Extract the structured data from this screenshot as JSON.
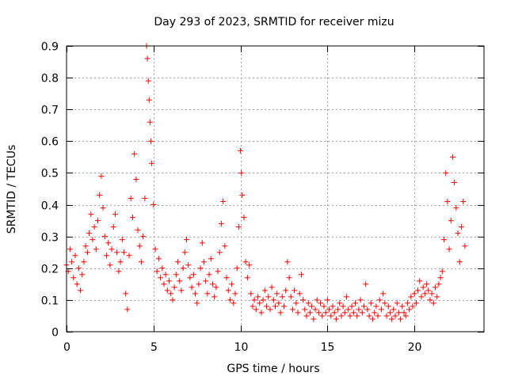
{
  "chart_data": {
    "type": "scatter",
    "title": "Day 293 of 2023, SRMTID for receiver mizu",
    "xlabel": "GPS time / hours",
    "ylabel": "SRMTID / TECUs",
    "xlim": [
      0,
      24
    ],
    "ylim": [
      0,
      0.9
    ],
    "xticks": [
      0,
      5,
      10,
      15,
      20
    ],
    "yticks": [
      0,
      0.1,
      0.2,
      0.3,
      0.4,
      0.5,
      0.6,
      0.7,
      0.8,
      0.9
    ],
    "grid": true,
    "marker": "+",
    "marker_color": "#ff0000",
    "series": [
      {
        "name": "SRMTID",
        "points": [
          [
            0.0,
            0.21
          ],
          [
            0.1,
            0.19
          ],
          [
            0.2,
            0.26
          ],
          [
            0.3,
            0.22
          ],
          [
            0.4,
            0.17
          ],
          [
            0.5,
            0.24
          ],
          [
            0.6,
            0.15
          ],
          [
            0.7,
            0.2
          ],
          [
            0.8,
            0.13
          ],
          [
            0.9,
            0.18
          ],
          [
            1.0,
            0.22
          ],
          [
            1.1,
            0.27
          ],
          [
            1.2,
            0.25
          ],
          [
            1.3,
            0.31
          ],
          [
            1.4,
            0.37
          ],
          [
            1.5,
            0.29
          ],
          [
            1.6,
            0.33
          ],
          [
            1.7,
            0.26
          ],
          [
            1.8,
            0.35
          ],
          [
            1.9,
            0.43
          ],
          [
            2.0,
            0.49
          ],
          [
            2.1,
            0.39
          ],
          [
            2.2,
            0.3
          ],
          [
            2.3,
            0.24
          ],
          [
            2.4,
            0.28
          ],
          [
            2.5,
            0.21
          ],
          [
            2.6,
            0.26
          ],
          [
            2.7,
            0.33
          ],
          [
            2.8,
            0.37
          ],
          [
            2.9,
            0.25
          ],
          [
            3.0,
            0.19
          ],
          [
            3.1,
            0.22
          ],
          [
            3.2,
            0.29
          ],
          [
            3.3,
            0.25
          ],
          [
            3.4,
            0.12
          ],
          [
            3.5,
            0.07
          ],
          [
            3.6,
            0.24
          ],
          [
            3.7,
            0.42
          ],
          [
            3.8,
            0.36
          ],
          [
            3.9,
            0.56
          ],
          [
            4.0,
            0.48
          ],
          [
            4.1,
            0.32
          ],
          [
            4.2,
            0.27
          ],
          [
            4.3,
            0.22
          ],
          [
            4.4,
            0.3
          ],
          [
            4.5,
            0.42
          ],
          [
            4.6,
            0.9
          ],
          [
            4.65,
            0.86
          ],
          [
            4.7,
            0.79
          ],
          [
            4.75,
            0.73
          ],
          [
            4.8,
            0.66
          ],
          [
            4.85,
            0.6
          ],
          [
            4.9,
            0.53
          ],
          [
            5.0,
            0.4
          ],
          [
            5.1,
            0.26
          ],
          [
            5.2,
            0.19
          ],
          [
            5.3,
            0.23
          ],
          [
            5.4,
            0.17
          ],
          [
            5.5,
            0.2
          ],
          [
            5.6,
            0.15
          ],
          [
            5.7,
            0.18
          ],
          [
            5.8,
            0.13
          ],
          [
            5.9,
            0.16
          ],
          [
            6.0,
            0.12
          ],
          [
            6.1,
            0.1
          ],
          [
            6.2,
            0.14
          ],
          [
            6.3,
            0.18
          ],
          [
            6.4,
            0.22
          ],
          [
            6.5,
            0.16
          ],
          [
            6.6,
            0.13
          ],
          [
            6.7,
            0.2
          ],
          [
            6.8,
            0.25
          ],
          [
            6.9,
            0.29
          ],
          [
            7.0,
            0.21
          ],
          [
            7.1,
            0.17
          ],
          [
            7.2,
            0.14
          ],
          [
            7.3,
            0.18
          ],
          [
            7.4,
            0.12
          ],
          [
            7.5,
            0.09
          ],
          [
            7.6,
            0.15
          ],
          [
            7.7,
            0.2
          ],
          [
            7.8,
            0.28
          ],
          [
            7.9,
            0.22
          ],
          [
            8.0,
            0.16
          ],
          [
            8.1,
            0.12
          ],
          [
            8.2,
            0.18
          ],
          [
            8.3,
            0.23
          ],
          [
            8.4,
            0.15
          ],
          [
            8.5,
            0.11
          ],
          [
            8.6,
            0.14
          ],
          [
            8.7,
            0.19
          ],
          [
            8.8,
            0.25
          ],
          [
            8.9,
            0.34
          ],
          [
            9.0,
            0.41
          ],
          [
            9.1,
            0.27
          ],
          [
            9.2,
            0.17
          ],
          [
            9.3,
            0.13
          ],
          [
            9.4,
            0.1
          ],
          [
            9.5,
            0.15
          ],
          [
            9.6,
            0.09
          ],
          [
            9.7,
            0.12
          ],
          [
            9.8,
            0.2
          ],
          [
            9.9,
            0.33
          ],
          [
            10.0,
            0.57
          ],
          [
            10.05,
            0.5
          ],
          [
            10.1,
            0.43
          ],
          [
            10.2,
            0.36
          ],
          [
            10.3,
            0.22
          ],
          [
            10.4,
            0.17
          ],
          [
            10.5,
            0.21
          ],
          [
            10.6,
            0.12
          ],
          [
            10.7,
            0.08
          ],
          [
            10.8,
            0.1
          ],
          [
            10.9,
            0.07
          ],
          [
            11.0,
            0.11
          ],
          [
            11.1,
            0.09
          ],
          [
            11.2,
            0.06
          ],
          [
            11.3,
            0.1
          ],
          [
            11.4,
            0.13
          ],
          [
            11.5,
            0.08
          ],
          [
            11.6,
            0.11
          ],
          [
            11.7,
            0.07
          ],
          [
            11.8,
            0.14
          ],
          [
            11.9,
            0.1
          ],
          [
            12.0,
            0.08
          ],
          [
            12.1,
            0.12
          ],
          [
            12.2,
            0.09
          ],
          [
            12.3,
            0.06
          ],
          [
            12.4,
            0.11
          ],
          [
            12.5,
            0.08
          ],
          [
            12.6,
            0.13
          ],
          [
            12.7,
            0.22
          ],
          [
            12.8,
            0.17
          ],
          [
            12.9,
            0.11
          ],
          [
            13.0,
            0.07
          ],
          [
            13.1,
            0.13
          ],
          [
            13.2,
            0.09
          ],
          [
            13.3,
            0.06
          ],
          [
            13.4,
            0.12
          ],
          [
            13.5,
            0.18
          ],
          [
            13.6,
            0.1
          ],
          [
            13.7,
            0.07
          ],
          [
            13.8,
            0.05
          ],
          [
            13.9,
            0.09
          ],
          [
            14.0,
            0.06
          ],
          [
            14.1,
            0.08
          ],
          [
            14.2,
            0.04
          ],
          [
            14.3,
            0.07
          ],
          [
            14.4,
            0.1
          ],
          [
            14.5,
            0.06
          ],
          [
            14.6,
            0.09
          ],
          [
            14.7,
            0.05
          ],
          [
            14.8,
            0.08
          ],
          [
            14.9,
            0.06
          ],
          [
            15.0,
            0.1
          ],
          [
            15.1,
            0.07
          ],
          [
            15.2,
            0.05
          ],
          [
            15.3,
            0.08
          ],
          [
            15.4,
            0.06
          ],
          [
            15.5,
            0.04
          ],
          [
            15.6,
            0.07
          ],
          [
            15.7,
            0.09
          ],
          [
            15.8,
            0.05
          ],
          [
            15.9,
            0.08
          ],
          [
            16.0,
            0.06
          ],
          [
            16.1,
            0.11
          ],
          [
            16.2,
            0.07
          ],
          [
            16.3,
            0.05
          ],
          [
            16.4,
            0.08
          ],
          [
            16.5,
            0.06
          ],
          [
            16.6,
            0.09
          ],
          [
            16.7,
            0.05
          ],
          [
            16.8,
            0.07
          ],
          [
            16.9,
            0.1
          ],
          [
            17.0,
            0.06
          ],
          [
            17.1,
            0.08
          ],
          [
            17.2,
            0.15
          ],
          [
            17.3,
            0.07
          ],
          [
            17.4,
            0.05
          ],
          [
            17.5,
            0.09
          ],
          [
            17.6,
            0.04
          ],
          [
            17.7,
            0.06
          ],
          [
            17.8,
            0.08
          ],
          [
            17.9,
            0.05
          ],
          [
            18.0,
            0.1
          ],
          [
            18.1,
            0.07
          ],
          [
            18.2,
            0.12
          ],
          [
            18.3,
            0.09
          ],
          [
            18.4,
            0.05
          ],
          [
            18.5,
            0.08
          ],
          [
            18.6,
            0.06
          ],
          [
            18.7,
            0.04
          ],
          [
            18.8,
            0.07
          ],
          [
            18.9,
            0.05
          ],
          [
            19.0,
            0.09
          ],
          [
            19.1,
            0.06
          ],
          [
            19.2,
            0.04
          ],
          [
            19.3,
            0.08
          ],
          [
            19.4,
            0.06
          ],
          [
            19.5,
            0.05
          ],
          [
            19.6,
            0.09
          ],
          [
            19.7,
            0.07
          ],
          [
            19.8,
            0.11
          ],
          [
            19.9,
            0.08
          ],
          [
            20.0,
            0.12
          ],
          [
            20.1,
            0.09
          ],
          [
            20.2,
            0.13
          ],
          [
            20.3,
            0.16
          ],
          [
            20.4,
            0.11
          ],
          [
            20.5,
            0.14
          ],
          [
            20.6,
            0.12
          ],
          [
            20.7,
            0.15
          ],
          [
            20.8,
            0.13
          ],
          [
            20.9,
            0.1
          ],
          [
            21.0,
            0.12
          ],
          [
            21.1,
            0.09
          ],
          [
            21.2,
            0.14
          ],
          [
            21.3,
            0.11
          ],
          [
            21.4,
            0.15
          ],
          [
            21.5,
            0.17
          ],
          [
            21.6,
            0.19
          ],
          [
            21.7,
            0.29
          ],
          [
            21.8,
            0.5
          ],
          [
            21.9,
            0.41
          ],
          [
            22.0,
            0.26
          ],
          [
            22.1,
            0.35
          ],
          [
            22.2,
            0.55
          ],
          [
            22.3,
            0.47
          ],
          [
            22.4,
            0.39
          ],
          [
            22.5,
            0.31
          ],
          [
            22.6,
            0.22
          ],
          [
            22.7,
            0.33
          ],
          [
            22.8,
            0.41
          ],
          [
            22.9,
            0.27
          ]
        ]
      }
    ]
  }
}
